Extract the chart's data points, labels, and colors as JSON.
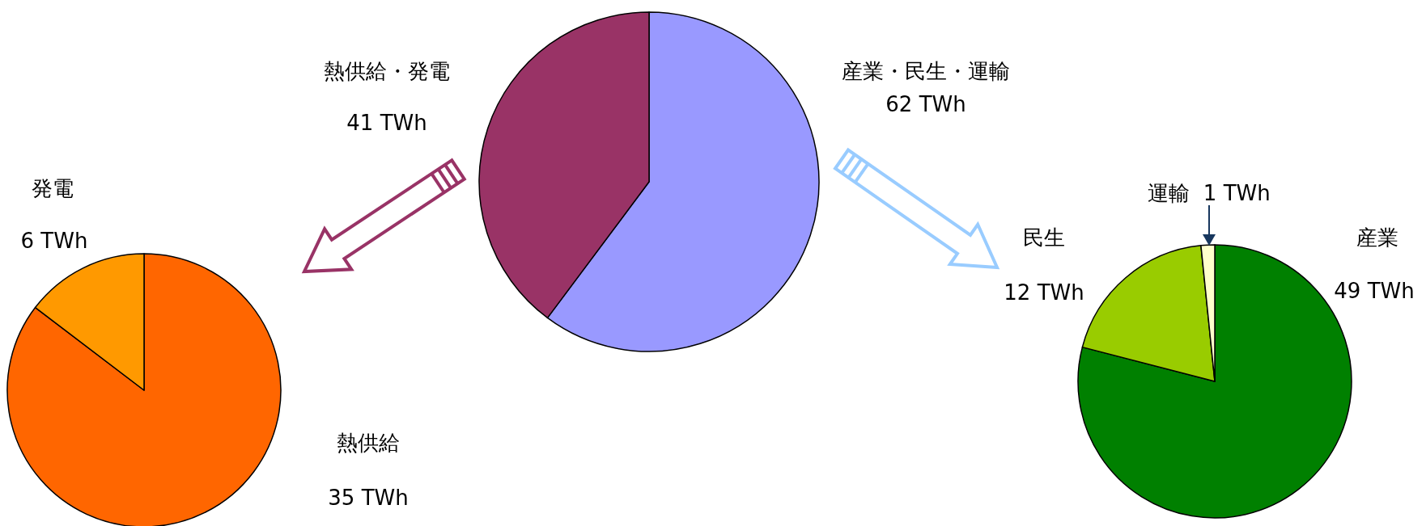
{
  "chart_data": [
    {
      "type": "pie",
      "categories": [
        "熱供給",
        "発電"
      ],
      "values": [
        35,
        6
      ],
      "colors": [
        "#ff6600",
        "#ff9900"
      ],
      "value_labels": [
        "35 TWh",
        "6 TWh"
      ]
    },
    {
      "type": "pie",
      "categories": [
        "産業・民生・運輸",
        "熱供給・発電"
      ],
      "values": [
        62,
        41
      ],
      "colors": [
        "#9999ff",
        "#993366"
      ],
      "value_labels": [
        "62 TWh",
        "41 TWh"
      ]
    },
    {
      "type": "pie",
      "categories": [
        "産業",
        "民生",
        "運輸"
      ],
      "values": [
        49,
        12,
        1
      ],
      "colors": [
        "#008000",
        "#99cc00",
        "#ffffcc"
      ],
      "value_labels": [
        "49 TWh",
        "12 TWh",
        "1 TWh"
      ]
    }
  ]
}
